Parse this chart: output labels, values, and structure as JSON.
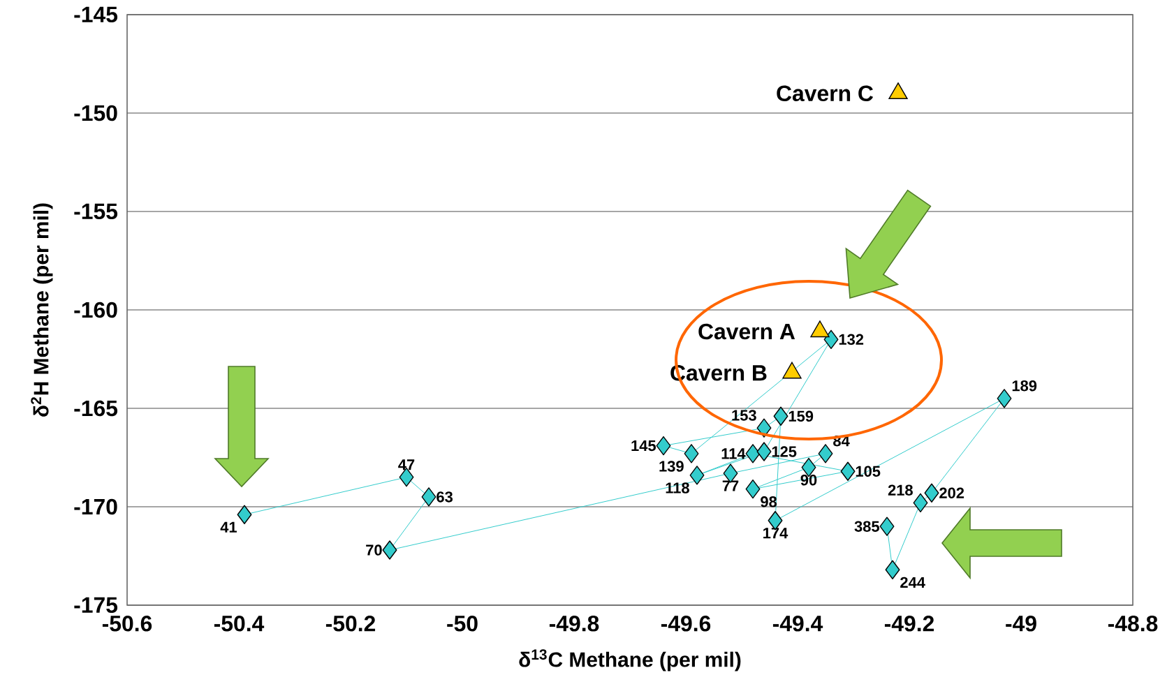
{
  "chart_data": {
    "type": "scatter",
    "xlabel": "δ$^{13}$C Methane (per mil)",
    "ylabel": "δ$^{2}$H Methane (per mil)",
    "xlim": [
      -50.6,
      -48.8
    ],
    "ylim": [
      -175,
      -145
    ],
    "xticks": [
      -50.6,
      -50.4,
      -50.2,
      -50,
      -49.8,
      -49.6,
      -49.4,
      -49.2,
      -49,
      -48.8
    ],
    "yticks": [
      -175,
      -170,
      -165,
      -160,
      -155,
      -150,
      -145
    ],
    "grid": "y",
    "series": [
      {
        "type": "line",
        "color": "#33cccc",
        "marker": "diamond",
        "x": [
          -50.39,
          -50.1,
          -50.06,
          -50.13,
          -49.52,
          -49.35,
          -49.38,
          -49.48,
          -49.31,
          -49.48,
          -49.58,
          -49.46,
          -49.34,
          -49.59,
          -49.64,
          -49.46,
          -49.43,
          -49.44,
          -49.03,
          -49.16,
          -49.18,
          -49.23,
          -49.24
        ],
        "values": [
          -170.4,
          -168.5,
          -169.5,
          -172.2,
          -168.3,
          -167.3,
          -168.0,
          -169.1,
          -168.2,
          -167.3,
          -168.4,
          -167.2,
          -161.5,
          -167.3,
          -166.9,
          -166.0,
          -165.4,
          -170.7,
          -164.5,
          -169.3,
          -169.8,
          -173.2,
          -171.0
        ]
      },
      {
        "name": "Cavern A",
        "color": "#ffcc00",
        "marker": "triangle",
        "x": [
          -49.36
        ],
        "values": [
          -161.1
        ]
      },
      {
        "name": "Cavern B",
        "color": "#ffcc00",
        "marker": "triangle",
        "x": [
          -49.41
        ],
        "values": [
          -163.2
        ]
      },
      {
        "name": "Cavern C",
        "color": "#ffcc00",
        "marker": "triangle",
        "x": [
          -49.22
        ],
        "values": [
          -149.0
        ]
      }
    ],
    "annotations": [
      {
        "text": "41",
        "x": -50.39,
        "y": -170.4
      },
      {
        "text": "47",
        "x": -50.1,
        "y": -168.5
      },
      {
        "text": "63",
        "x": -50.06,
        "y": -169.5
      },
      {
        "text": "70",
        "x": -50.13,
        "y": -172.2
      },
      {
        "text": "77",
        "x": -49.52,
        "y": -168.3
      },
      {
        "text": "84",
        "x": -49.35,
        "y": -167.3
      },
      {
        "text": "90",
        "x": -49.38,
        "y": -168.0
      },
      {
        "text": "98",
        "x": -49.48,
        "y": -169.1
      },
      {
        "text": "105",
        "x": -49.31,
        "y": -168.2
      },
      {
        "text": "114",
        "x": -49.48,
        "y": -167.3
      },
      {
        "text": "118",
        "x": -49.58,
        "y": -168.4
      },
      {
        "text": "125",
        "x": -49.46,
        "y": -167.2
      },
      {
        "text": "132",
        "x": -49.34,
        "y": -161.5
      },
      {
        "text": "139",
        "x": -49.59,
        "y": -167.3
      },
      {
        "text": "145",
        "x": -49.64,
        "y": -166.9
      },
      {
        "text": "153",
        "x": -49.46,
        "y": -166.0
      },
      {
        "text": "159",
        "x": -49.43,
        "y": -165.4
      },
      {
        "text": "174",
        "x": -49.44,
        "y": -170.7
      },
      {
        "text": "189",
        "x": -49.03,
        "y": -164.5
      },
      {
        "text": "202",
        "x": -49.16,
        "y": -169.3
      },
      {
        "text": "218",
        "x": -49.18,
        "y": -169.8
      },
      {
        "text": "244",
        "x": -49.23,
        "y": -173.2
      },
      {
        "text": "385",
        "x": -49.24,
        "y": -171.0
      }
    ]
  }
}
